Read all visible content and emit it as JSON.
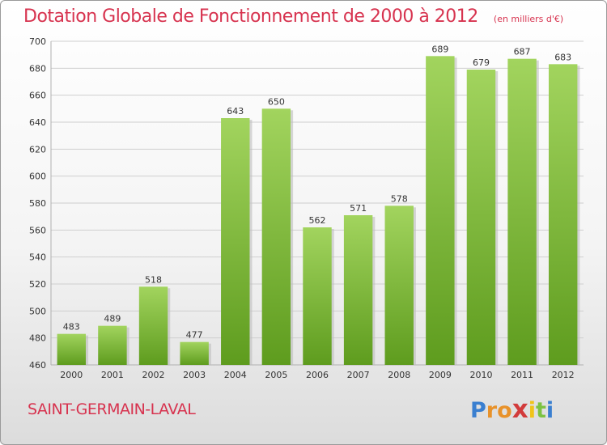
{
  "header": {
    "title": "Dotation Globale de Fonctionnement de 2000 à 2012",
    "unit": "(en milliers d'€)"
  },
  "footer": {
    "city": "SAINT-GERMAIN-LAVAL",
    "logo": [
      "P",
      "r",
      "o",
      "x",
      "i",
      "t",
      "i"
    ],
    "logo_colors": [
      "#3a7fd0",
      "#e8922a",
      "#e8922a",
      "#d23b3b",
      "#f0c419",
      "#7cc242",
      "#3a7fd0"
    ]
  },
  "chart_data": {
    "type": "bar",
    "categories": [
      "2000",
      "2001",
      "2002",
      "2003",
      "2004",
      "2005",
      "2006",
      "2007",
      "2008",
      "2009",
      "2010",
      "2011",
      "2012"
    ],
    "values": [
      483,
      489,
      518,
      477,
      643,
      650,
      562,
      571,
      578,
      689,
      679,
      687,
      683
    ],
    "ylim": [
      460,
      700
    ],
    "yticks": [
      "460",
      "480",
      "500",
      "520",
      "540",
      "560",
      "580",
      "600",
      "620",
      "640",
      "660",
      "680",
      "700"
    ],
    "grid": true,
    "bar_color_top": "#a2d45e",
    "bar_color_bottom": "#5e9c1e"
  }
}
